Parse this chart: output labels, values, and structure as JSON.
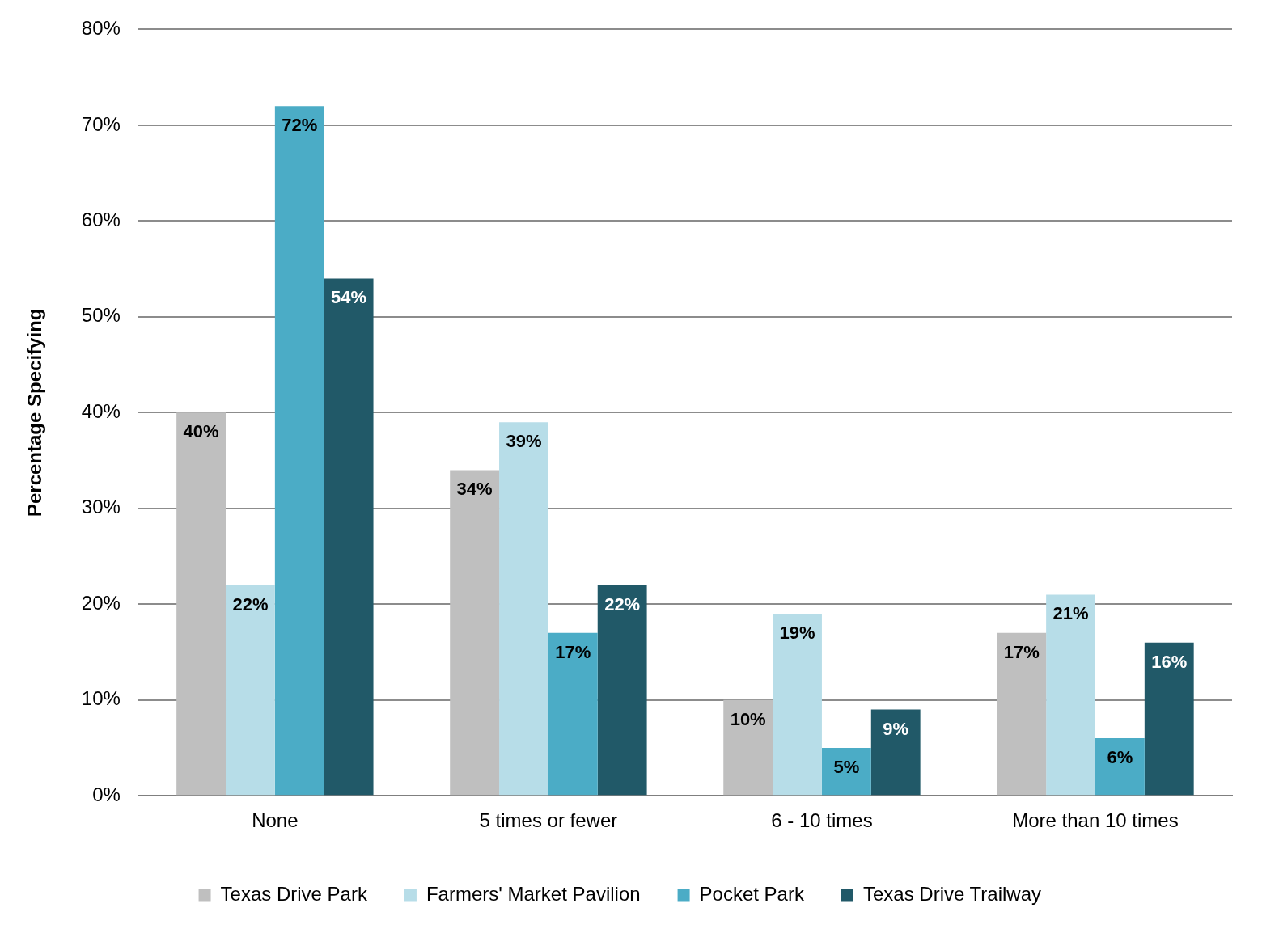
{
  "chart_data": {
    "type": "bar",
    "ylabel": "Percentage Specifying",
    "categories": [
      "None",
      "5 times or fewer",
      "6 - 10 times",
      "More than 10 times"
    ],
    "series": [
      {
        "name": "Texas Drive Park",
        "color": "#bfbfbf",
        "values": [
          40,
          34,
          10,
          17
        ],
        "value_labels": [
          "40%",
          "34%",
          "10%",
          "17%"
        ]
      },
      {
        "name": "Farmers' Market Pavilion",
        "color": "#b7dde8",
        "values": [
          22,
          39,
          19,
          21
        ],
        "value_labels": [
          "22%",
          "39%",
          "19%",
          "21%"
        ]
      },
      {
        "name": "Pocket Park",
        "color": "#4bacc6",
        "values": [
          72,
          17,
          5,
          6
        ],
        "value_labels": [
          "72%",
          "17%",
          "5%",
          "6%"
        ]
      },
      {
        "name": "Texas Drive Trailway",
        "color": "#215968",
        "values": [
          54,
          22,
          9,
          16
        ],
        "value_labels": [
          "54%",
          "22%",
          "9%",
          "16%"
        ]
      }
    ],
    "ylim": [
      0,
      80
    ],
    "yticks": [
      {
        "value": 0,
        "label": "0%"
      },
      {
        "value": 10,
        "label": "10%"
      },
      {
        "value": 20,
        "label": "20%"
      },
      {
        "value": 30,
        "label": "30%"
      },
      {
        "value": 40,
        "label": "40%"
      },
      {
        "value": 50,
        "label": "50%"
      },
      {
        "value": 60,
        "label": "60%"
      },
      {
        "value": 70,
        "label": "70%"
      },
      {
        "value": 80,
        "label": "80%"
      }
    ],
    "grid": "y",
    "legend": "bottom"
  }
}
